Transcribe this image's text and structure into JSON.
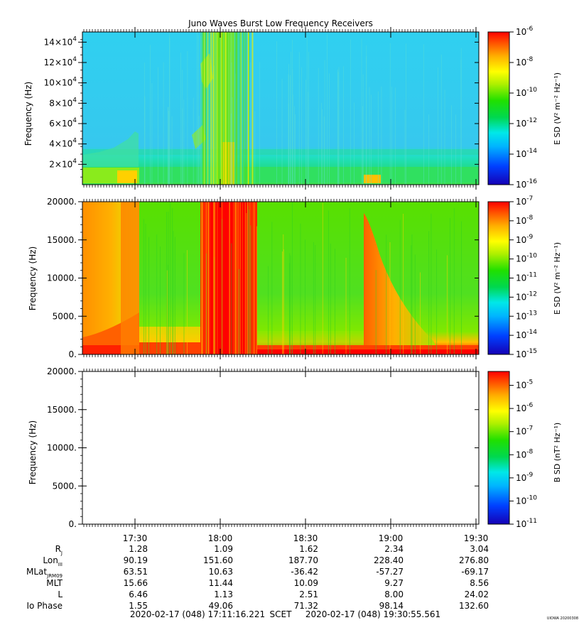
{
  "title": "Juno Waves Burst Low Frequency Receivers",
  "watermark": "UIOWA 20200308",
  "time_axis": {
    "ticks": [
      "17:30",
      "18:00",
      "18:30",
      "19:00",
      "19:30"
    ],
    "start_label": "2020-02-17 (048) 17:11:16.221",
    "scet_label": "SCET",
    "end_label": "2020-02-17 (048) 19:30:55.561"
  },
  "ephemeris": {
    "rows": [
      {
        "label": "R",
        "sub": "J",
        "values": [
          "1.28",
          "1.09",
          "1.62",
          "2.34",
          "3.04"
        ]
      },
      {
        "label": "Lon",
        "sub": "III",
        "values": [
          "90.19",
          "151.60",
          "187.70",
          "228.40",
          "276.80"
        ]
      },
      {
        "label": "MLat",
        "sub": "JRM09",
        "values": [
          "63.51",
          "10.63",
          "-36.42",
          "-57.27",
          "-69.17"
        ]
      },
      {
        "label": "MLT",
        "sub": "",
        "values": [
          "15.66",
          "11.44",
          "10.09",
          "9.27",
          "8.56"
        ]
      },
      {
        "label": "L",
        "sub": "",
        "values": [
          "6.46",
          "1.13",
          "2.51",
          "8.00",
          "24.02"
        ]
      },
      {
        "label": "Io Phase",
        "sub": "",
        "values": [
          "1.55",
          "49.06",
          "71.32",
          "98.14",
          "132.60"
        ]
      }
    ]
  },
  "chart_data": [
    {
      "type": "heatmap",
      "ylabel": "Frequency (Hz)",
      "ylim": [
        0,
        150000
      ],
      "yticks": [
        {
          "value": 20000,
          "mant": "2×10",
          "exp": "4"
        },
        {
          "value": 40000,
          "mant": "4×10",
          "exp": "4"
        },
        {
          "value": 60000,
          "mant": "6×10",
          "exp": "4"
        },
        {
          "value": 80000,
          "mant": "8×10",
          "exp": "4"
        },
        {
          "value": 100000,
          "mant": "10×10",
          "exp": "4"
        },
        {
          "value": 120000,
          "mant": "12×10",
          "exp": "4"
        },
        {
          "value": 140000,
          "mant": "14×10",
          "exp": "4"
        }
      ],
      "colorbar": {
        "label": "E SD (V² m⁻² Hz⁻¹)",
        "range_exp": [
          -16,
          -6
        ],
        "ticks": [
          "-6",
          "-8",
          "-10",
          "-12",
          "-14",
          "-16"
        ]
      }
    },
    {
      "type": "heatmap",
      "ylabel": "Frequency (Hz)",
      "ylim": [
        0,
        20000
      ],
      "yticks": [
        {
          "value": 0,
          "label": "0."
        },
        {
          "value": 5000,
          "label": "5000."
        },
        {
          "value": 10000,
          "label": "10000."
        },
        {
          "value": 15000,
          "label": "15000."
        },
        {
          "value": 20000,
          "label": "20000."
        }
      ],
      "colorbar": {
        "label": "E SD (V² m⁻² Hz⁻¹)",
        "range_exp": [
          -15,
          -7
        ],
        "ticks": [
          "-7",
          "-8",
          "-9",
          "-10",
          "-11",
          "-12",
          "-13",
          "-14",
          "-15"
        ]
      }
    },
    {
      "type": "heatmap",
      "ylabel": "Frequency (Hz)",
      "ylim": [
        0,
        20000
      ],
      "yticks": [
        {
          "value": 0,
          "label": "0."
        },
        {
          "value": 5000,
          "label": "5000."
        },
        {
          "value": 10000,
          "label": "10000."
        },
        {
          "value": 15000,
          "label": "15000."
        },
        {
          "value": 20000,
          "label": "20000."
        }
      ],
      "colorbar": {
        "label": "B SD (nT² Hz⁻¹)",
        "range_exp": [
          -11,
          -4.4
        ],
        "ticks": [
          "-5",
          "-6",
          "-7",
          "-8",
          "-9",
          "-10",
          "-11"
        ]
      }
    }
  ]
}
